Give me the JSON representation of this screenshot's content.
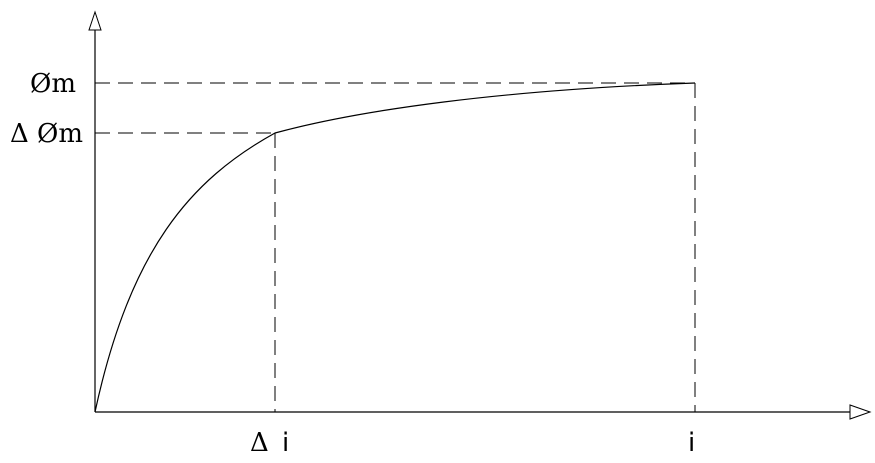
{
  "labels": {
    "y_top": "Øm",
    "y_mid": "Δ Øm",
    "x_left": "Δ",
    "x_left_suffix": "i",
    "x_right": "i"
  }
}
